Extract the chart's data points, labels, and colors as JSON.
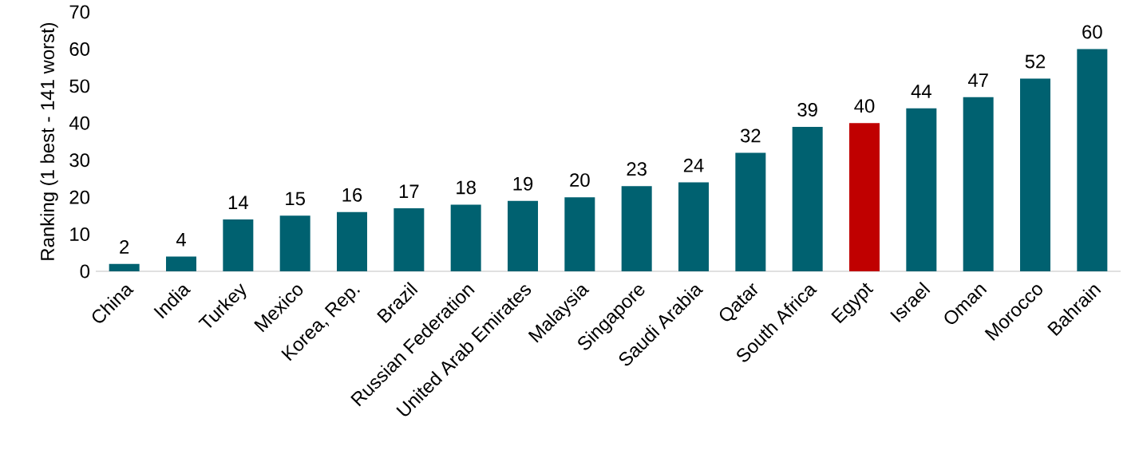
{
  "chart_data": {
    "type": "bar",
    "ylabel": "Ranking (1 best - 141 worst)",
    "categories": [
      "China",
      "India",
      "Turkey",
      "Mexico",
      "Korea, Rep.",
      "Brazil",
      "Russian Federation",
      "United Arab Emirates",
      "Malaysia",
      "Singapore",
      "Saudi Arabia",
      "Qatar",
      "South Africa",
      "Egypt",
      "Israel",
      "Oman",
      "Morocco",
      "Bahrain"
    ],
    "values": [
      2,
      4,
      14,
      15,
      16,
      17,
      18,
      19,
      20,
      23,
      24,
      32,
      39,
      40,
      44,
      47,
      52,
      60
    ],
    "colors": [
      "#006170",
      "#006170",
      "#006170",
      "#006170",
      "#006170",
      "#006170",
      "#006170",
      "#006170",
      "#006170",
      "#006170",
      "#006170",
      "#006170",
      "#006170",
      "#c00000",
      "#006170",
      "#006170",
      "#006170",
      "#006170"
    ],
    "ylim": [
      0,
      70
    ],
    "yticks": [
      0,
      10,
      20,
      30,
      40,
      50,
      60,
      70
    ],
    "data_labels": true,
    "grid": false
  }
}
